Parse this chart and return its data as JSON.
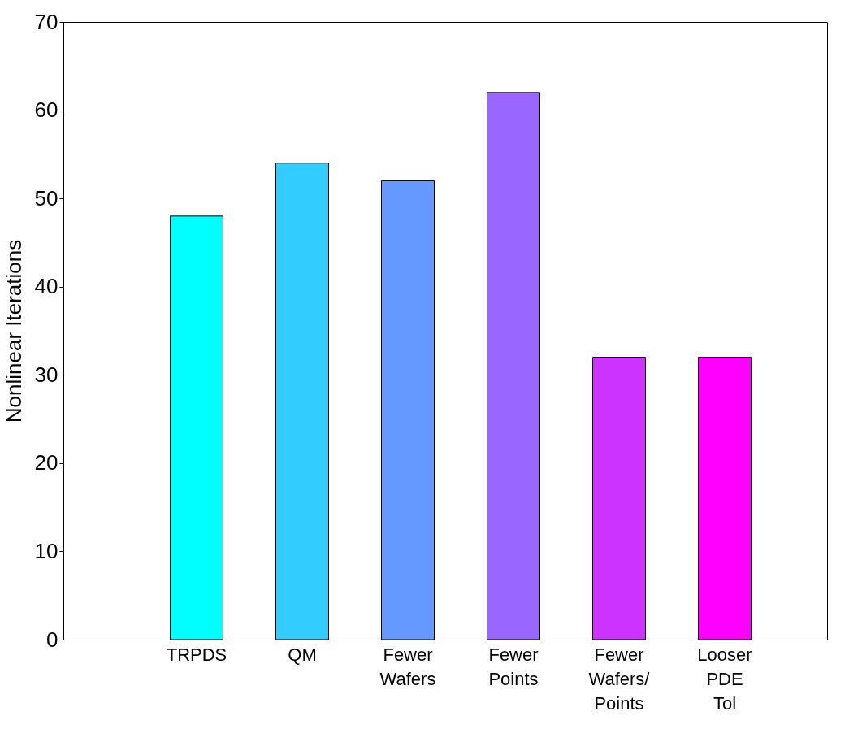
{
  "chart_data": {
    "type": "bar",
    "ylabel": "Nonlinear Iterations",
    "categories": [
      "TRPDS",
      "QM",
      "Fewer Wafers",
      "Fewer Points",
      "Fewer Wafers/ Points",
      "Looser PDE Tol"
    ],
    "values": [
      48,
      54,
      52,
      62,
      32,
      32
    ],
    "colors": [
      "#00ffff",
      "#33ccff",
      "#6699ff",
      "#9966ff",
      "#cc33ff",
      "#ff00ff"
    ],
    "ylim": [
      0,
      70
    ],
    "yticks": [
      0,
      10,
      20,
      30,
      40,
      50,
      60,
      70
    ],
    "grid": false,
    "legend": false
  }
}
